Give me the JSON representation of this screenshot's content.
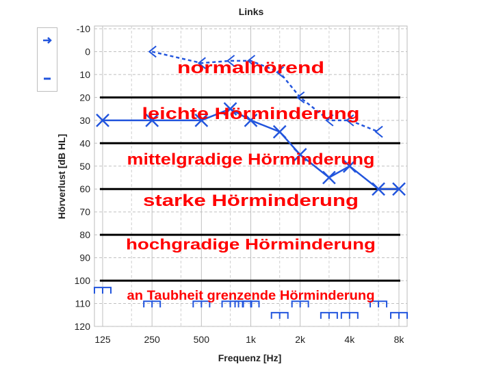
{
  "chart_data": {
    "type": "line",
    "title": "Links",
    "xlabel": "Frequenz [Hz]",
    "ylabel": "Hörverlust [dB HL]",
    "x_ticks": [
      {
        "freq": 125,
        "label": "125"
      },
      {
        "freq": 250,
        "label": "250"
      },
      {
        "freq": 500,
        "label": "500"
      },
      {
        "freq": 1000,
        "label": "1k"
      },
      {
        "freq": 2000,
        "label": "2k"
      },
      {
        "freq": 4000,
        "label": "4k"
      },
      {
        "freq": 8000,
        "label": "8k"
      }
    ],
    "x_scale": "log2",
    "xlim": [
      125,
      8000
    ],
    "ylim": [
      -10,
      120
    ],
    "y_inverted": true,
    "y_ticks": [
      -10,
      0,
      10,
      20,
      30,
      40,
      50,
      60,
      70,
      80,
      90,
      100,
      110,
      120
    ],
    "grid": true,
    "series": [
      {
        "name": "",
        "style": "dashed",
        "marker": "arrow",
        "color": "#2255dd",
        "points": [
          {
            "x": 250,
            "y": 0
          },
          {
            "x": 500,
            "y": 5
          },
          {
            "x": 750,
            "y": 4
          },
          {
            "x": 1000,
            "y": 4
          },
          {
            "x": 1500,
            "y": 9
          },
          {
            "x": 2000,
            "y": 20
          },
          {
            "x": 3000,
            "y": 30
          },
          {
            "x": 4000,
            "y": 30
          },
          {
            "x": 6000,
            "y": 35
          }
        ]
      },
      {
        "name": "",
        "style": "solid",
        "marker": "x",
        "color": "#2255dd",
        "points": [
          {
            "x": 125,
            "y": 30
          },
          {
            "x": 250,
            "y": 30
          },
          {
            "x": 500,
            "y": 30
          },
          {
            "x": 750,
            "y": 25
          },
          {
            "x": 1000,
            "y": 30
          },
          {
            "x": 1500,
            "y": 35
          },
          {
            "x": 2000,
            "y": 45
          },
          {
            "x": 3000,
            "y": 55
          },
          {
            "x": 4000,
            "y": 50
          },
          {
            "x": 6000,
            "y": 60
          },
          {
            "x": 8000,
            "y": 60
          }
        ]
      }
    ],
    "boundaries": [
      20,
      40,
      60,
      80,
      100
    ],
    "annotations": [
      {
        "text": "normalhörend",
        "y": 7
      },
      {
        "text": "leichte Hörminderung",
        "y": 27
      },
      {
        "text": "mittelgradige Hörminderung",
        "y": 47
      },
      {
        "text": "starke Hörminderung",
        "y": 65
      },
      {
        "text": "hochgradige Hörminderung",
        "y": 84
      },
      {
        "text": "an Taubheit grenzende Hörminderung",
        "y": 106
      }
    ],
    "masking_brackets": [
      {
        "x": 125,
        "y": 103
      },
      {
        "x": 250,
        "y": 109
      },
      {
        "x": 500,
        "y": 109
      },
      {
        "x": 750,
        "y": 109
      },
      {
        "x": 900,
        "y": 109
      },
      {
        "x": 1000,
        "y": 109
      },
      {
        "x": 1500,
        "y": 114
      },
      {
        "x": 2000,
        "y": 109
      },
      {
        "x": 3000,
        "y": 114
      },
      {
        "x": 4000,
        "y": 114
      },
      {
        "x": 6000,
        "y": 109
      },
      {
        "x": 8000,
        "y": 114
      }
    ]
  },
  "legend_panel": {
    "items": [
      {
        "icon": "arrow-right-icon",
        "color": "#2255dd"
      },
      {
        "icon": "dash-icon",
        "color": "#2255dd"
      }
    ]
  }
}
